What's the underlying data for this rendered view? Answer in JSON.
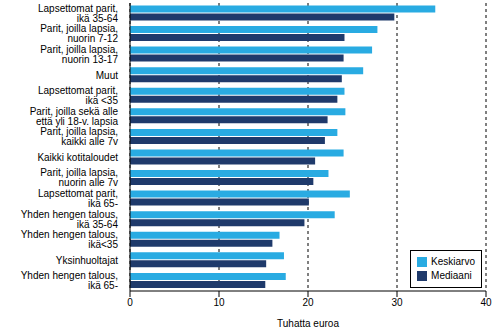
{
  "chart_data": {
    "type": "bar",
    "orientation": "horizontal",
    "categories": [
      "Lapsettomat parit, ikä 35-64",
      "Parit, joilla lapsia, nuorin 7-12",
      "Parit, joilla lapsia, nuorin 13-17",
      "Muut",
      "Lapsettomat parit, ikä <35",
      "Parit, joilla sekä alle että yli 18-v. lapsia",
      "Parit, joilla lapsia, kaikki alle 7v",
      "Kaikki kotitaloudet",
      "Parit, joilla lapsia, nuorin alle 7v",
      "Lapsettomat parit, ikä 65-",
      "Yhden hengen talous, ikä 35-64",
      "Yhden hengen talous, ikä<35",
      "Yksinhuoltajat",
      "Yhden hengen talous, ikä 65-"
    ],
    "series": [
      {
        "name": "Keskiarvo",
        "color": "#29abe2",
        "values": [
          34.3,
          27.8,
          27.2,
          26.2,
          24.1,
          24.2,
          23.3,
          24.0,
          22.3,
          24.7,
          23.0,
          16.8,
          17.3,
          17.5
        ]
      },
      {
        "name": "Mediaani",
        "color": "#1f3a6b",
        "values": [
          29.7,
          24.1,
          24.0,
          23.8,
          23.3,
          22.2,
          21.9,
          20.8,
          20.6,
          20.1,
          19.6,
          16.0,
          15.3,
          15.2
        ]
      }
    ],
    "xlabel": "Tuhatta euroa",
    "xlim": [
      0,
      40
    ],
    "xticks": [
      0,
      10,
      20,
      30,
      40
    ],
    "grid": true,
    "legend": "lower right"
  }
}
